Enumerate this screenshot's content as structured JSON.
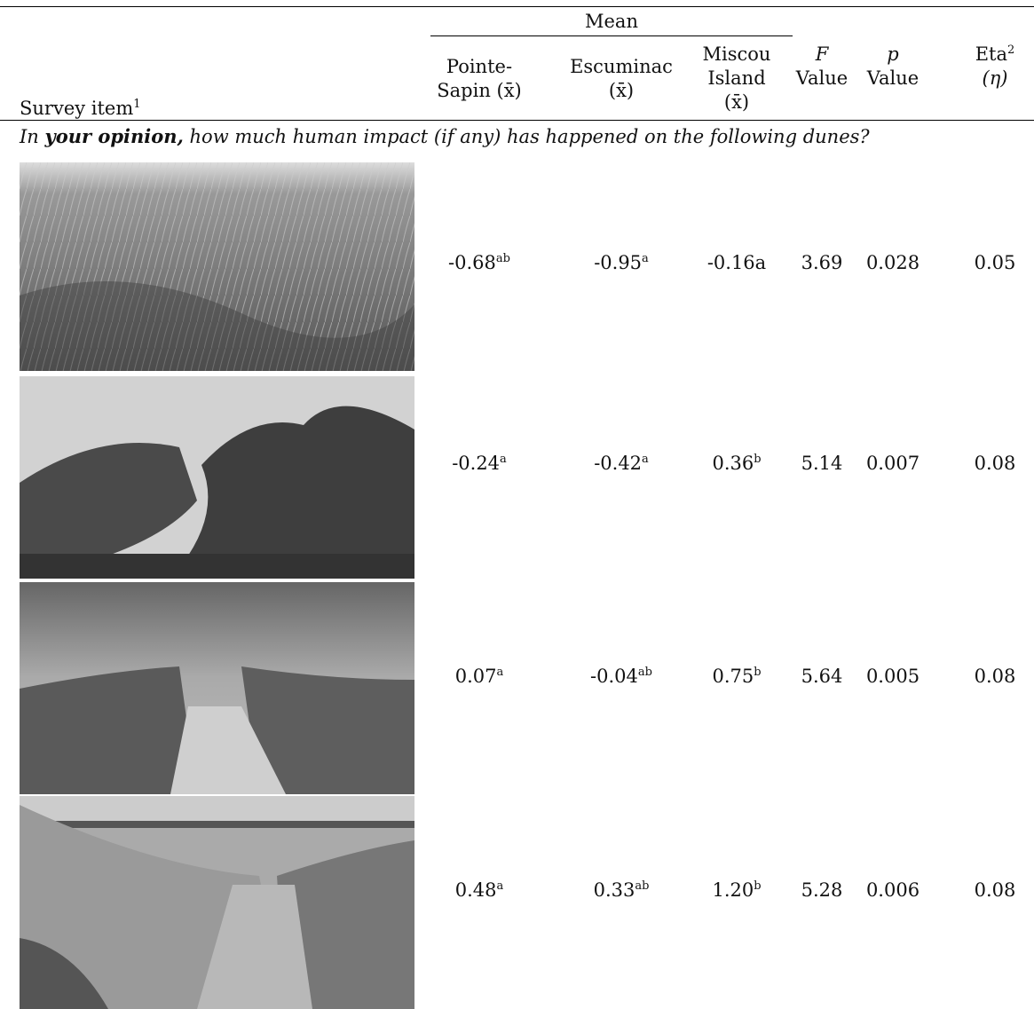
{
  "header": {
    "survey_item": {
      "text": "Survey item",
      "sup": "1"
    },
    "mean": "Mean",
    "columns": [
      {
        "lines": [
          "Pointe-",
          "Sapin (x̄)"
        ]
      },
      {
        "lines": [
          "Escuminac",
          "(x̄)"
        ]
      },
      {
        "lines": [
          "Miscou",
          "Island",
          "(x̄)"
        ]
      },
      {
        "italic": "F",
        "text": "Value"
      },
      {
        "italic": "p",
        "text": "Value"
      },
      {
        "text": "Eta",
        "sup": "2",
        "after": "(η)"
      }
    ]
  },
  "prompt": {
    "before": "In ",
    "bold": "your opinion,",
    "after": " how much human impact (if any) has happened on the following dunes?"
  },
  "rows": [
    {
      "cells": [
        {
          "text": "-0.68",
          "sup": "ab"
        },
        {
          "text": "-0.95",
          "sup": "a"
        },
        {
          "text": "-0.16a"
        },
        {
          "text": "3.69"
        },
        {
          "text": "0.028"
        },
        {
          "text": "0.05"
        }
      ]
    },
    {
      "cells": [
        {
          "text": "-0.24",
          "sup": "a"
        },
        {
          "text": "-0.42",
          "sup": "a"
        },
        {
          "text": "0.36",
          "sup": "b"
        },
        {
          "text": "5.14"
        },
        {
          "text": "0.007"
        },
        {
          "text": "0.08"
        }
      ]
    },
    {
      "cells": [
        {
          "text": "0.07",
          "sup": "a"
        },
        {
          "text": "-0.04",
          "sup": "ab"
        },
        {
          "text": "0.75",
          "sup": "b"
        },
        {
          "text": "5.64"
        },
        {
          "text": "0.005"
        },
        {
          "text": "0.08"
        }
      ]
    },
    {
      "cells": [
        {
          "text": "0.48",
          "sup": "a"
        },
        {
          "text": "0.33",
          "sup": "ab"
        },
        {
          "text": "1.20",
          "sup": "b"
        },
        {
          "text": "5.28"
        },
        {
          "text": "0.006"
        },
        {
          "text": "0.08"
        }
      ]
    }
  ]
}
